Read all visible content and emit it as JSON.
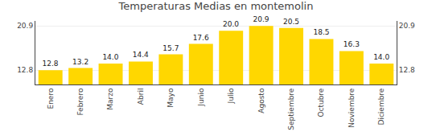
{
  "chart_data": {
    "type": "bar",
    "title": "Temperaturas Medias en montemolin",
    "categories": [
      "Enero",
      "Febrero",
      "Marzo",
      "Abril",
      "Mayo",
      "Junio",
      "Julio",
      "Agosto",
      "Septiembre",
      "Octubre",
      "Noviembre",
      "Diciembre"
    ],
    "values": [
      12.8,
      13.2,
      14.0,
      14.4,
      15.7,
      17.6,
      20.0,
      20.9,
      20.5,
      18.5,
      16.3,
      14.0
    ],
    "value_labels": [
      "12.8",
      "13.2",
      "14.0",
      "14.4",
      "15.7",
      "17.6",
      "20.0",
      "20.9",
      "20.5",
      "18.5",
      "16.3",
      "14.0"
    ],
    "data_labels": true,
    "color": "#FFD700",
    "ylim": [
      10.2,
      21.8
    ],
    "yticks": [
      12.8,
      20.9
    ],
    "y2lim": [
      10.2,
      21.8
    ],
    "y2ticks": [
      12.8,
      20.9
    ],
    "grid": true
  }
}
